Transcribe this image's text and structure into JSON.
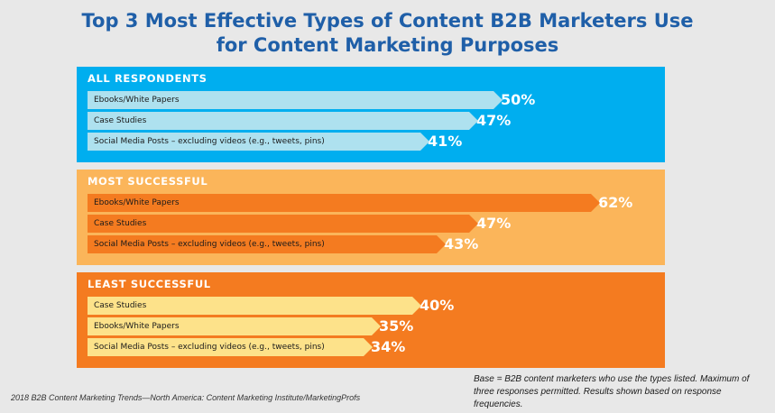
{
  "title_line1": "Top 3 Most Effective Types of Content B2B Marketers Use",
  "title_line2": "for Content Marketing Purposes",
  "chart_data": {
    "type": "bar",
    "orientation": "horizontal",
    "title": "Top 3 Most Effective Types of Content B2B Marketers Use for Content Marketing Purposes",
    "unit": "%",
    "groups": [
      {
        "name": "ALL RESPONDENTS",
        "bg_color": "#00aeef",
        "bar_color": "#aee1ef",
        "label_color": "#ffffff",
        "value_color": "#ffffff",
        "categories": [
          "Ebooks/White Papers",
          "Case Studies",
          "Social Media Posts – excluding videos (e.g., tweets, pins)"
        ],
        "values": [
          50,
          47,
          41
        ]
      },
      {
        "name": "MOST SUCCESSFUL",
        "bg_color": "#fbb55a",
        "bar_color": "#f47b20",
        "label_color": "#ffffff",
        "value_color": "#ffffff",
        "categories": [
          "Ebooks/White Papers",
          "Case Studies",
          "Social Media Posts – excluding videos (e.g., tweets, pins)"
        ],
        "values": [
          62,
          47,
          43
        ]
      },
      {
        "name": "LEAST SUCCESSFUL",
        "bg_color": "#f47b20",
        "bar_color": "#fde28a",
        "label_color": "#ffffff",
        "value_color": "#ffffff",
        "categories": [
          "Case Studies",
          "Ebooks/White Papers",
          "Social Media Posts – excluding videos (e.g., tweets, pins)"
        ],
        "values": [
          40,
          35,
          34
        ]
      }
    ]
  },
  "footer": {
    "source": "2018 B2B Content Marketing Trends—North America: Content Marketing Institute/MarketingProfs",
    "note": "Base = B2B content marketers who use the types listed. Maximum of three responses permitted. Results shown based on response frequencies."
  }
}
